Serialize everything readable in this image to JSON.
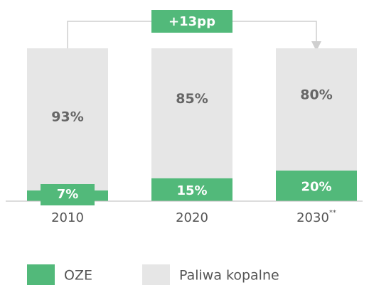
{
  "chart_data": {
    "type": "stacked_bar",
    "categories": [
      "2010",
      "2020",
      "2030"
    ],
    "category_marks": [
      null,
      null,
      "**"
    ],
    "series": [
      {
        "name": "OZE",
        "color": "#52b97a",
        "values": [
          7,
          15,
          20
        ],
        "value_labels": [
          "7%",
          "15%",
          "20%"
        ]
      },
      {
        "name": "Paliwa kopalne",
        "color": "#e6e6e6",
        "values": [
          93,
          85,
          80
        ],
        "value_labels": [
          "93%",
          "85%",
          "80%"
        ]
      }
    ],
    "ylim": [
      0,
      100
    ],
    "annotation": "+13pp"
  }
}
